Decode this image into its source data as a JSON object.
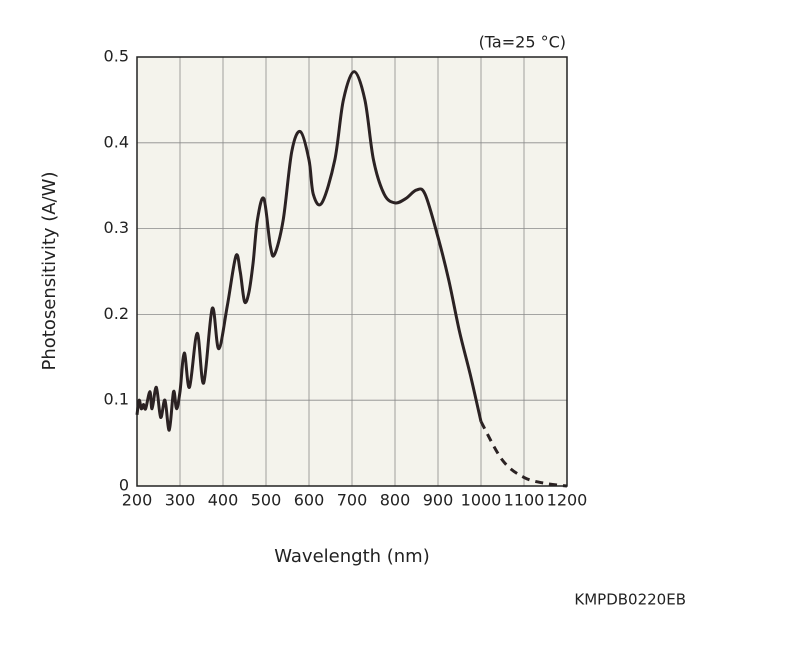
{
  "chart_data": {
    "type": "line",
    "xlabel": "Wavelength (nm)",
    "ylabel": "Photosensitivity (A/W)",
    "annotation": "(Ta=25 °C)",
    "code": "KMPDB0220EB",
    "x": [
      200,
      205,
      210,
      215,
      220,
      230,
      235,
      245,
      255,
      265,
      275,
      285,
      292,
      300,
      310,
      322,
      340,
      355,
      375,
      390,
      410,
      430,
      440,
      450,
      460,
      470,
      480,
      495,
      510,
      520,
      540,
      560,
      580,
      600,
      610,
      630,
      660,
      680,
      705,
      730,
      750,
      775,
      800,
      825,
      850,
      870,
      900,
      925,
      950,
      975,
      1000,
      1050,
      1100,
      1150,
      1200
    ],
    "series": [
      {
        "color": "#2b2223",
        "dashed": false,
        "values": [
          0.083,
          0.1,
          0.09,
          0.095,
          0.09,
          0.11,
          0.09,
          0.115,
          0.08,
          0.1,
          0.065,
          0.11,
          0.09,
          0.11,
          0.155,
          0.115,
          0.178,
          0.12,
          0.207,
          0.16,
          0.21,
          0.268,
          0.25,
          0.215,
          0.225,
          0.26,
          0.31,
          0.335,
          0.28,
          0.27,
          0.31,
          0.39,
          0.413,
          0.38,
          0.34,
          0.33,
          0.38,
          0.45,
          0.483,
          0.45,
          0.38,
          0.34,
          0.33,
          0.335,
          0.345,
          0.34,
          0.29,
          0.24,
          0.18,
          0.13,
          0.075,
          null,
          null,
          null,
          null
        ]
      },
      {
        "color": "#2b2223",
        "dashed": true,
        "values": [
          null,
          null,
          null,
          null,
          null,
          null,
          null,
          null,
          null,
          null,
          null,
          null,
          null,
          null,
          null,
          null,
          null,
          null,
          null,
          null,
          null,
          null,
          null,
          null,
          null,
          null,
          null,
          null,
          null,
          null,
          null,
          null,
          null,
          null,
          null,
          null,
          null,
          null,
          null,
          null,
          null,
          null,
          null,
          null,
          null,
          null,
          null,
          null,
          null,
          null,
          0.075,
          0.03,
          0.01,
          0.003,
          0
        ]
      }
    ],
    "xlim": [
      200,
      1200
    ],
    "ylim": [
      0,
      0.5
    ],
    "xticks": [
      200,
      300,
      400,
      500,
      600,
      700,
      800,
      900,
      1000,
      1100,
      1200
    ],
    "yticks": [
      0,
      0.1,
      0.2,
      0.3,
      0.4,
      0.5
    ],
    "grid": true,
    "plot_background": "#f4f3ec"
  }
}
